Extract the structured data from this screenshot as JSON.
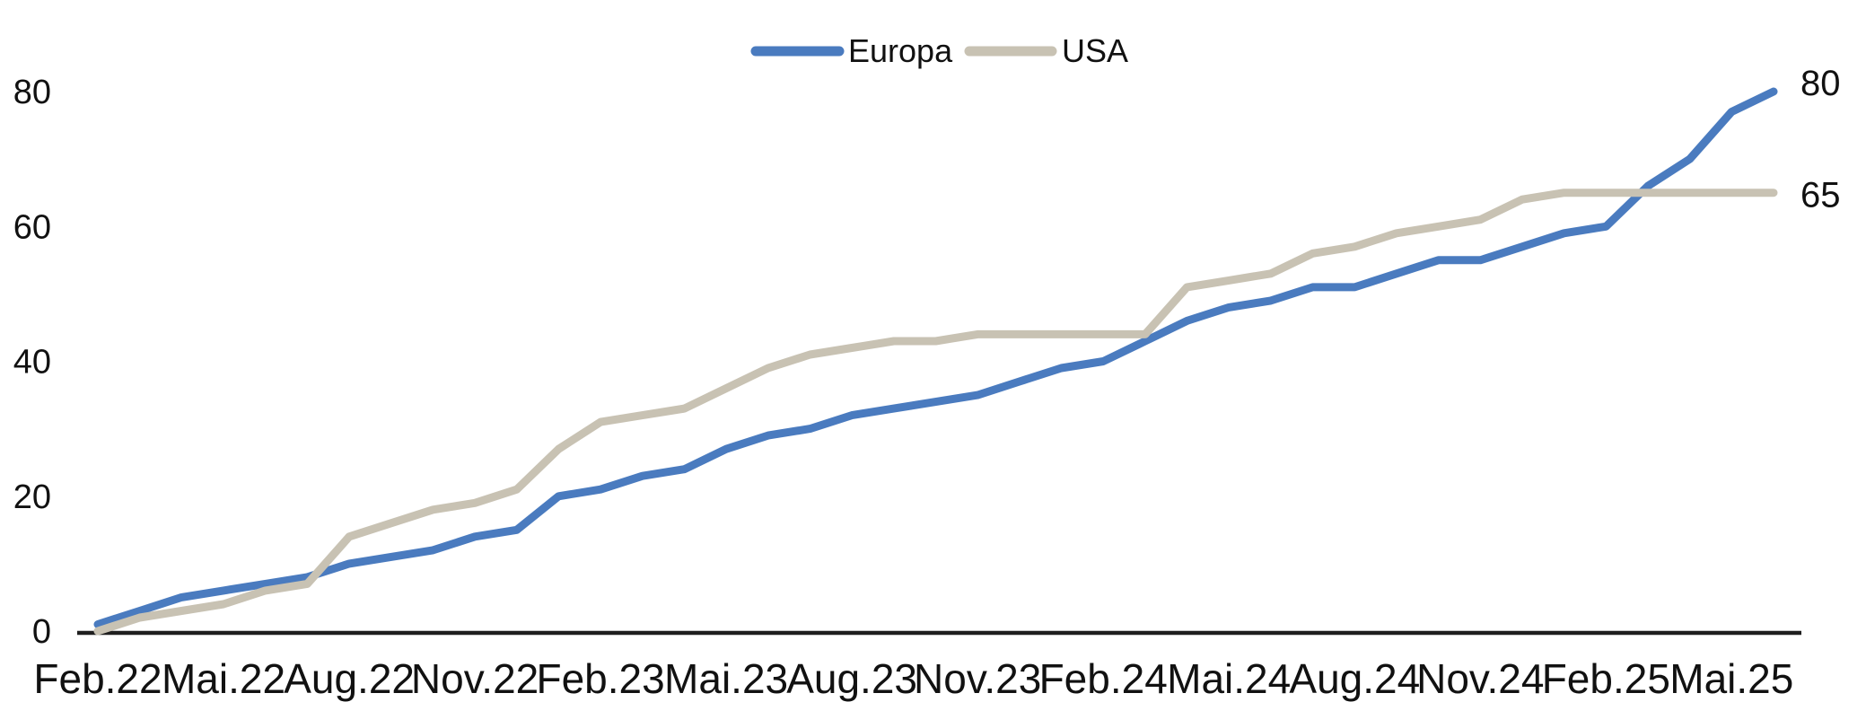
{
  "chart_data": {
    "type": "line",
    "title": "",
    "x_categories": [
      "Feb.22",
      "Mär.22",
      "Apr.22",
      "Mai.22",
      "Jun.22",
      "Jul.22",
      "Aug.22",
      "Sep.22",
      "Okt.22",
      "Nov.22",
      "Dez.22",
      "Jan.23",
      "Feb.23",
      "Mär.23",
      "Apr.23",
      "Mai.23",
      "Jun.23",
      "Jul.23",
      "Aug.23",
      "Sep.23",
      "Okt.23",
      "Nov.23",
      "Dez.23",
      "Jan.24",
      "Feb.24",
      "Mär.24",
      "Apr.24",
      "Mai.24",
      "Jun.24",
      "Jul.24",
      "Aug.24",
      "Sep.24",
      "Okt.24",
      "Nov.24",
      "Dez.24",
      "Jan.25",
      "Feb.25",
      "Mär.25",
      "Apr.25",
      "Mai.25",
      "Jun.25"
    ],
    "x_axis_tick_labels": [
      "Feb.22",
      "Mai.22",
      "Aug.22",
      "Nov.22",
      "Feb.23",
      "Mai.23",
      "Aug.23",
      "Nov.23",
      "Feb.24",
      "Mai.24",
      "Aug.24",
      "Nov.24",
      "Feb.25",
      "Mai.25"
    ],
    "x_tick_every": 3,
    "y_ticks": [
      0,
      20,
      40,
      60,
      80
    ],
    "ylim": [
      0,
      80
    ],
    "grid": false,
    "legend_position": "top-center",
    "series": [
      {
        "name": "Europa",
        "color": "#4a7bbf",
        "end_label": "80",
        "values": [
          1,
          3,
          5,
          6,
          7,
          8,
          10,
          11,
          12,
          14,
          15,
          20,
          21,
          23,
          24,
          27,
          29,
          30,
          32,
          33,
          34,
          35,
          37,
          39,
          40,
          43,
          46,
          48,
          49,
          51,
          51,
          53,
          55,
          55,
          57,
          59,
          60,
          66,
          70,
          77,
          80
        ]
      },
      {
        "name": "USA",
        "color": "#c8c2b3",
        "end_label": "65",
        "values": [
          0,
          2,
          3,
          4,
          6,
          7,
          14,
          16,
          18,
          19,
          21,
          27,
          31,
          32,
          33,
          36,
          39,
          41,
          42,
          43,
          43,
          44,
          44,
          44,
          44,
          44,
          51,
          52,
          53,
          56,
          57,
          59,
          60,
          61,
          64,
          65,
          65,
          65,
          65,
          65,
          65
        ]
      }
    ]
  },
  "colors": {
    "axis": "#1f1f1f",
    "text": "#111111",
    "background": "#ffffff"
  }
}
